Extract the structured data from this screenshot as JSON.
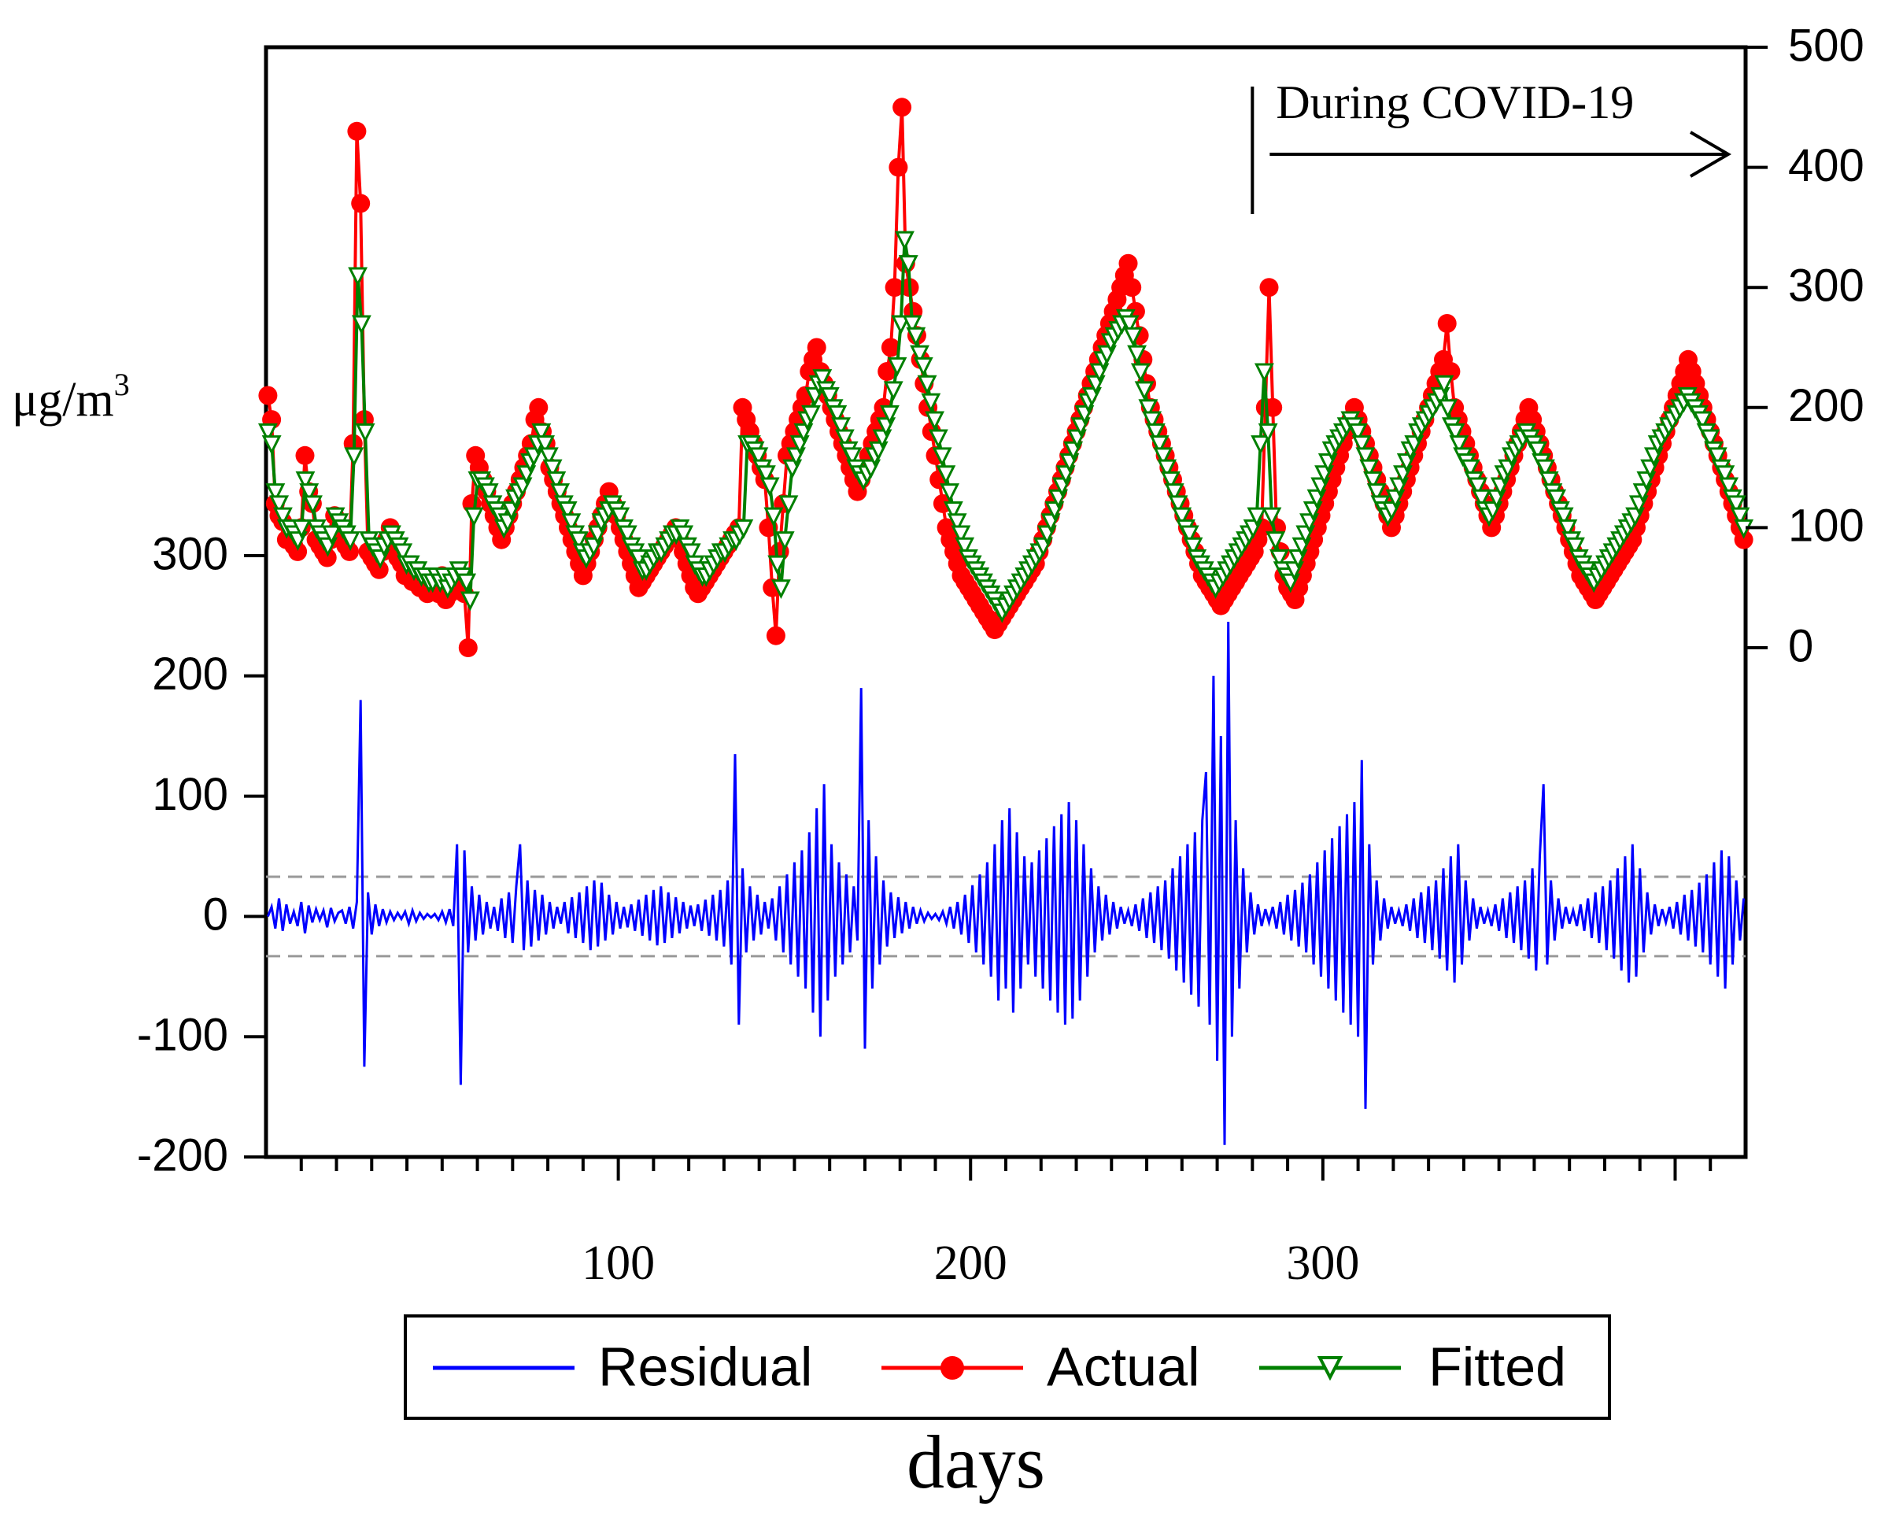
{
  "chart_data": {
    "type": "line",
    "xlabel": "days",
    "left_axis": {
      "ticks": [
        "300",
        "200",
        "100",
        "0",
        "-100",
        "-200"
      ],
      "tick_values": [
        300,
        200,
        100,
        0,
        -100,
        -200
      ],
      "range": [
        -200,
        500
      ]
    },
    "right_axis": {
      "label": "μg/m",
      "label_sup": "3",
      "ticks": [
        "500",
        "400",
        "300",
        "200",
        "100",
        "0"
      ],
      "tick_values": [
        500,
        400,
        300,
        200,
        100,
        0
      ],
      "range": [
        -430,
        500
      ]
    },
    "x_axis": {
      "ticks": [
        "100",
        "200",
        "300"
      ],
      "tick_values": [
        100,
        200,
        300
      ],
      "range": [
        0,
        420
      ]
    },
    "annotation": {
      "text": "During COVID-19",
      "start_day": 280,
      "arrow": "right"
    },
    "residual_band": [
      -33,
      33
    ],
    "series": [
      {
        "name": "Residual",
        "color": "#0000ff",
        "axis": "left",
        "marker": "none",
        "values": [
          0,
          8,
          -10,
          15,
          -12,
          10,
          -6,
          4,
          -8,
          12,
          -14,
          9,
          -5,
          6,
          -3,
          5,
          -9,
          7,
          -4,
          3,
          5,
          -6,
          8,
          -10,
          12,
          180,
          -125,
          20,
          -15,
          10,
          -8,
          6,
          -5,
          4,
          -3,
          3,
          -2,
          4,
          -6,
          5,
          -4,
          3,
          -2,
          2,
          -1,
          2,
          -3,
          4,
          -5,
          6,
          -8,
          60,
          -140,
          55,
          -30,
          25,
          -20,
          18,
          -15,
          12,
          -10,
          8,
          -12,
          15,
          -18,
          20,
          -22,
          25,
          60,
          -28,
          30,
          -25,
          22,
          -20,
          18,
          -15,
          12,
          -10,
          8,
          -6,
          12,
          -14,
          16,
          -18,
          20,
          -22,
          25,
          -28,
          30,
          -25,
          28,
          -20,
          18,
          -15,
          12,
          -10,
          8,
          -9,
          10,
          -12,
          14,
          -16,
          18,
          -20,
          22,
          -24,
          25,
          -22,
          20,
          -18,
          16,
          -14,
          12,
          -10,
          9,
          -8,
          10,
          -12,
          14,
          -16,
          18,
          -20,
          22,
          -25,
          30,
          -40,
          135,
          -90,
          40,
          -30,
          25,
          -20,
          18,
          -15,
          12,
          -10,
          15,
          -20,
          25,
          -30,
          35,
          -40,
          45,
          -50,
          55,
          -60,
          70,
          -80,
          90,
          -100,
          110,
          -70,
          60,
          -50,
          45,
          -40,
          35,
          -30,
          25,
          -20,
          190,
          -110,
          80,
          -60,
          50,
          -40,
          30,
          -25,
          20,
          -18,
          16,
          -14,
          12,
          -10,
          8,
          -6,
          5,
          -4,
          3,
          -2,
          2,
          -3,
          4,
          -6,
          8,
          -10,
          12,
          -15,
          18,
          -22,
          26,
          -30,
          35,
          -40,
          45,
          -50,
          60,
          -70,
          80,
          -60,
          90,
          -80,
          70,
          -60,
          50,
          -40,
          45,
          -50,
          55,
          -60,
          65,
          -70,
          75,
          -80,
          85,
          -90,
          95,
          -85,
          80,
          -70,
          60,
          -50,
          40,
          -30,
          25,
          -20,
          18,
          -15,
          12,
          -10,
          8,
          -6,
          5,
          -8,
          10,
          -12,
          15,
          -18,
          20,
          -22,
          25,
          -28,
          30,
          -35,
          40,
          -45,
          50,
          -55,
          60,
          -65,
          70,
          -75,
          80,
          120,
          -90,
          200,
          -120,
          150,
          -190,
          245,
          -100,
          80,
          -60,
          40,
          -30,
          20,
          -15,
          10,
          -8,
          6,
          -5,
          8,
          -10,
          12,
          -15,
          18,
          -20,
          22,
          -25,
          28,
          -30,
          35,
          -40,
          45,
          -50,
          55,
          -60,
          65,
          -70,
          75,
          -80,
          85,
          -90,
          95,
          -100,
          130,
          -160,
          60,
          -40,
          30,
          -20,
          15,
          -10,
          8,
          -6,
          5,
          -8,
          10,
          -12,
          15,
          -18,
          20,
          -22,
          25,
          -28,
          30,
          -35,
          40,
          -45,
          50,
          -55,
          60,
          -40,
          30,
          -20,
          15,
          -10,
          8,
          -6,
          5,
          -8,
          10,
          -12,
          15,
          -18,
          20,
          -22,
          25,
          -28,
          30,
          -35,
          40,
          -45,
          50,
          110,
          -40,
          30,
          -20,
          15,
          -10,
          8,
          -6,
          5,
          -8,
          10,
          -12,
          15,
          -18,
          20,
          -22,
          25,
          -28,
          30,
          -35,
          40,
          -45,
          50,
          -55,
          60,
          -50,
          40,
          -30,
          20,
          -15,
          10,
          -8,
          6,
          -5,
          8,
          -10,
          12,
          -15,
          18,
          -20,
          22,
          -25,
          28,
          -30,
          35,
          -40,
          45,
          -50,
          55,
          -60,
          50,
          -40,
          30,
          -20,
          15
        ]
      },
      {
        "name": "Actual",
        "color": "#ff0000",
        "axis": "right",
        "marker": "circle",
        "values": [
          210,
          190,
          120,
          110,
          105,
          90,
          95,
          85,
          80,
          100,
          160,
          130,
          120,
          90,
          85,
          80,
          75,
          90,
          110,
          100,
          95,
          85,
          80,
          170,
          430,
          370,
          190,
          80,
          75,
          70,
          65,
          80,
          90,
          100,
          85,
          75,
          70,
          60,
          65,
          55,
          60,
          50,
          55,
          45,
          50,
          55,
          45,
          60,
          40,
          45,
          55,
          60,
          50,
          45,
          0,
          120,
          160,
          150,
          140,
          130,
          120,
          110,
          100,
          90,
          100,
          110,
          120,
          130,
          140,
          150,
          160,
          170,
          190,
          200,
          180,
          170,
          150,
          140,
          130,
          120,
          110,
          100,
          90,
          80,
          70,
          60,
          70,
          80,
          90,
          100,
          110,
          120,
          130,
          120,
          110,
          100,
          90,
          80,
          70,
          60,
          50,
          55,
          60,
          65,
          70,
          75,
          80,
          85,
          90,
          95,
          100,
          90,
          80,
          70,
          60,
          50,
          45,
          50,
          55,
          60,
          65,
          70,
          75,
          80,
          85,
          90,
          95,
          100,
          200,
          190,
          180,
          170,
          160,
          150,
          140,
          100,
          50,
          10,
          80,
          120,
          160,
          170,
          180,
          190,
          200,
          210,
          230,
          240,
          250,
          230,
          220,
          210,
          200,
          190,
          180,
          170,
          160,
          150,
          140,
          130,
          140,
          150,
          160,
          170,
          180,
          190,
          200,
          230,
          250,
          300,
          400,
          450,
          320,
          300,
          280,
          260,
          240,
          220,
          200,
          180,
          160,
          140,
          120,
          100,
          90,
          80,
          70,
          60,
          55,
          50,
          45,
          40,
          35,
          30,
          25,
          20,
          15,
          20,
          25,
          30,
          35,
          40,
          45,
          50,
          55,
          60,
          65,
          70,
          80,
          90,
          100,
          110,
          120,
          130,
          140,
          150,
          160,
          170,
          180,
          190,
          200,
          210,
          220,
          230,
          240,
          250,
          260,
          270,
          280,
          290,
          300,
          310,
          320,
          300,
          280,
          260,
          240,
          220,
          200,
          190,
          180,
          170,
          160,
          150,
          140,
          130,
          120,
          110,
          100,
          90,
          80,
          70,
          60,
          55,
          50,
          45,
          40,
          35,
          40,
          45,
          50,
          55,
          60,
          65,
          70,
          75,
          80,
          90,
          100,
          200,
          300,
          200,
          100,
          80,
          60,
          50,
          45,
          40,
          50,
          60,
          70,
          80,
          90,
          100,
          110,
          120,
          130,
          140,
          150,
          160,
          170,
          180,
          190,
          200,
          190,
          180,
          170,
          160,
          150,
          140,
          130,
          120,
          110,
          100,
          110,
          120,
          130,
          140,
          150,
          160,
          170,
          180,
          190,
          200,
          210,
          220,
          230,
          240,
          270,
          230,
          200,
          190,
          180,
          170,
          160,
          150,
          140,
          130,
          120,
          110,
          100,
          110,
          120,
          130,
          140,
          150,
          160,
          170,
          180,
          190,
          200,
          190,
          180,
          170,
          160,
          150,
          140,
          130,
          120,
          110,
          100,
          90,
          80,
          70,
          60,
          55,
          50,
          45,
          40,
          45,
          50,
          55,
          60,
          65,
          70,
          75,
          80,
          85,
          90,
          100,
          110,
          120,
          130,
          140,
          150,
          160,
          170,
          180,
          190,
          200,
          210,
          220,
          230,
          240,
          230,
          220,
          210,
          200,
          190,
          180,
          170,
          160,
          150,
          140,
          130,
          120,
          110,
          100,
          90
        ]
      },
      {
        "name": "Fitted",
        "color": "#008000",
        "axis": "right",
        "marker": "triangle-down",
        "values": [
          180,
          170,
          130,
          120,
          110,
          100,
          100,
          95,
          90,
          100,
          140,
          130,
          120,
          100,
          95,
          90,
          85,
          95,
          110,
          105,
          100,
          95,
          90,
          160,
          310,
          270,
          180,
          90,
          85,
          80,
          75,
          85,
          90,
          95,
          90,
          85,
          80,
          70,
          70,
          65,
          65,
          60,
          60,
          55,
          55,
          60,
          55,
          60,
          50,
          55,
          60,
          65,
          60,
          55,
          40,
          110,
          140,
          140,
          135,
          130,
          120,
          115,
          110,
          100,
          105,
          115,
          125,
          130,
          135,
          145,
          155,
          160,
          170,
          180,
          170,
          160,
          150,
          140,
          130,
          120,
          115,
          105,
          95,
          90,
          80,
          75,
          80,
          85,
          95,
          105,
          110,
          115,
          120,
          115,
          110,
          100,
          95,
          85,
          80,
          75,
          65,
          65,
          70,
          75,
          80,
          80,
          85,
          90,
          95,
          95,
          100,
          95,
          85,
          80,
          70,
          65,
          60,
          60,
          65,
          70,
          75,
          80,
          80,
          85,
          90,
          90,
          95,
          100,
          170,
          170,
          165,
          160,
          150,
          145,
          135,
          110,
          70,
          50,
          90,
          120,
          150,
          160,
          170,
          180,
          190,
          195,
          210,
          220,
          225,
          215,
          210,
          200,
          195,
          185,
          175,
          165,
          160,
          150,
          145,
          140,
          145,
          150,
          160,
          165,
          175,
          185,
          195,
          215,
          235,
          270,
          340,
          320,
          270,
          260,
          245,
          235,
          220,
          205,
          190,
          175,
          160,
          145,
          130,
          115,
          105,
          95,
          85,
          75,
          70,
          65,
          60,
          55,
          50,
          45,
          40,
          35,
          30,
          35,
          40,
          45,
          50,
          55,
          60,
          65,
          70,
          75,
          80,
          85,
          95,
          105,
          115,
          125,
          135,
          145,
          155,
          165,
          175,
          185,
          195,
          205,
          210,
          220,
          230,
          240,
          245,
          255,
          260,
          265,
          270,
          275,
          270,
          260,
          245,
          230,
          215,
          200,
          190,
          180,
          170,
          160,
          150,
          140,
          130,
          120,
          110,
          100,
          95,
          85,
          75,
          70,
          65,
          60,
          55,
          50,
          55,
          60,
          65,
          70,
          75,
          80,
          85,
          90,
          95,
          100,
          110,
          170,
          230,
          180,
          110,
          90,
          75,
          65,
          60,
          55,
          65,
          75,
          85,
          95,
          105,
          115,
          125,
          135,
          145,
          155,
          165,
          170,
          175,
          180,
          185,
          190,
          185,
          180,
          170,
          160,
          150,
          140,
          130,
          120,
          115,
          110,
          115,
          125,
          135,
          145,
          155,
          165,
          170,
          180,
          185,
          190,
          195,
          200,
          205,
          210,
          220,
          200,
          185,
          180,
          170,
          160,
          155,
          150,
          140,
          135,
          125,
          115,
          110,
          115,
          125,
          135,
          145,
          150,
          160,
          165,
          170,
          175,
          180,
          175,
          170,
          165,
          155,
          150,
          140,
          130,
          125,
          115,
          110,
          100,
          90,
          85,
          75,
          70,
          65,
          60,
          55,
          60,
          65,
          70,
          75,
          80,
          85,
          90,
          95,
          100,
          105,
          110,
          120,
          130,
          140,
          150,
          160,
          170,
          175,
          180,
          185,
          190,
          195,
          200,
          205,
          210,
          205,
          200,
          195,
          190,
          180,
          175,
          165,
          160,
          150,
          145,
          135,
          125,
          120,
          110,
          100
        ]
      }
    ],
    "legend": {
      "position": "bottom",
      "items": [
        {
          "label": "Residual",
          "color": "#0000ff",
          "marker": "none"
        },
        {
          "label": "Actual",
          "color": "#ff0000",
          "marker": "circle"
        },
        {
          "label": "Fitted",
          "color": "#008000",
          "marker": "triangle-down"
        }
      ]
    },
    "grid": false
  }
}
